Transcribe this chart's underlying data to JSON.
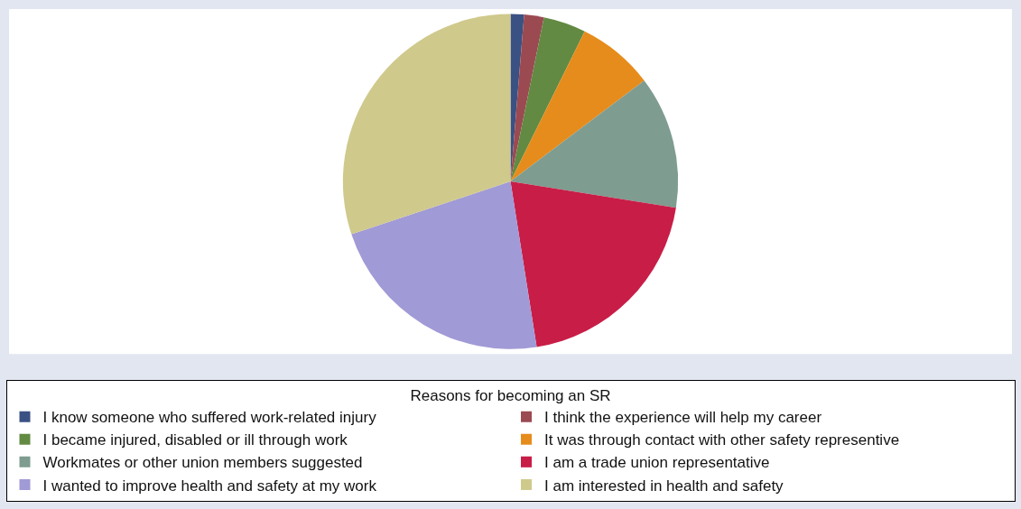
{
  "chart_data": {
    "type": "pie",
    "legend_title": "Reasons for becoming an SR",
    "legend": "bottom",
    "categories": [
      "I know someone who suffered work-related injury",
      "I think the experience will help my career",
      "I became injured, disabled or ill through work",
      "It was through contact with other safety representive",
      "Workmates or other union members suggested",
      "I am a trade union representative",
      "I wanted to improve health and safety at my work",
      "I am interested in health and safety"
    ],
    "values": [
      1.3,
      1.9,
      4.1,
      7.4,
      12.8,
      20.0,
      22.4,
      30.1
    ],
    "colors": [
      "#3a5184",
      "#9b4a52",
      "#628a42",
      "#e68c1c",
      "#7e9c90",
      "#c81d47",
      "#a09ad6",
      "#cfc98c"
    ]
  }
}
